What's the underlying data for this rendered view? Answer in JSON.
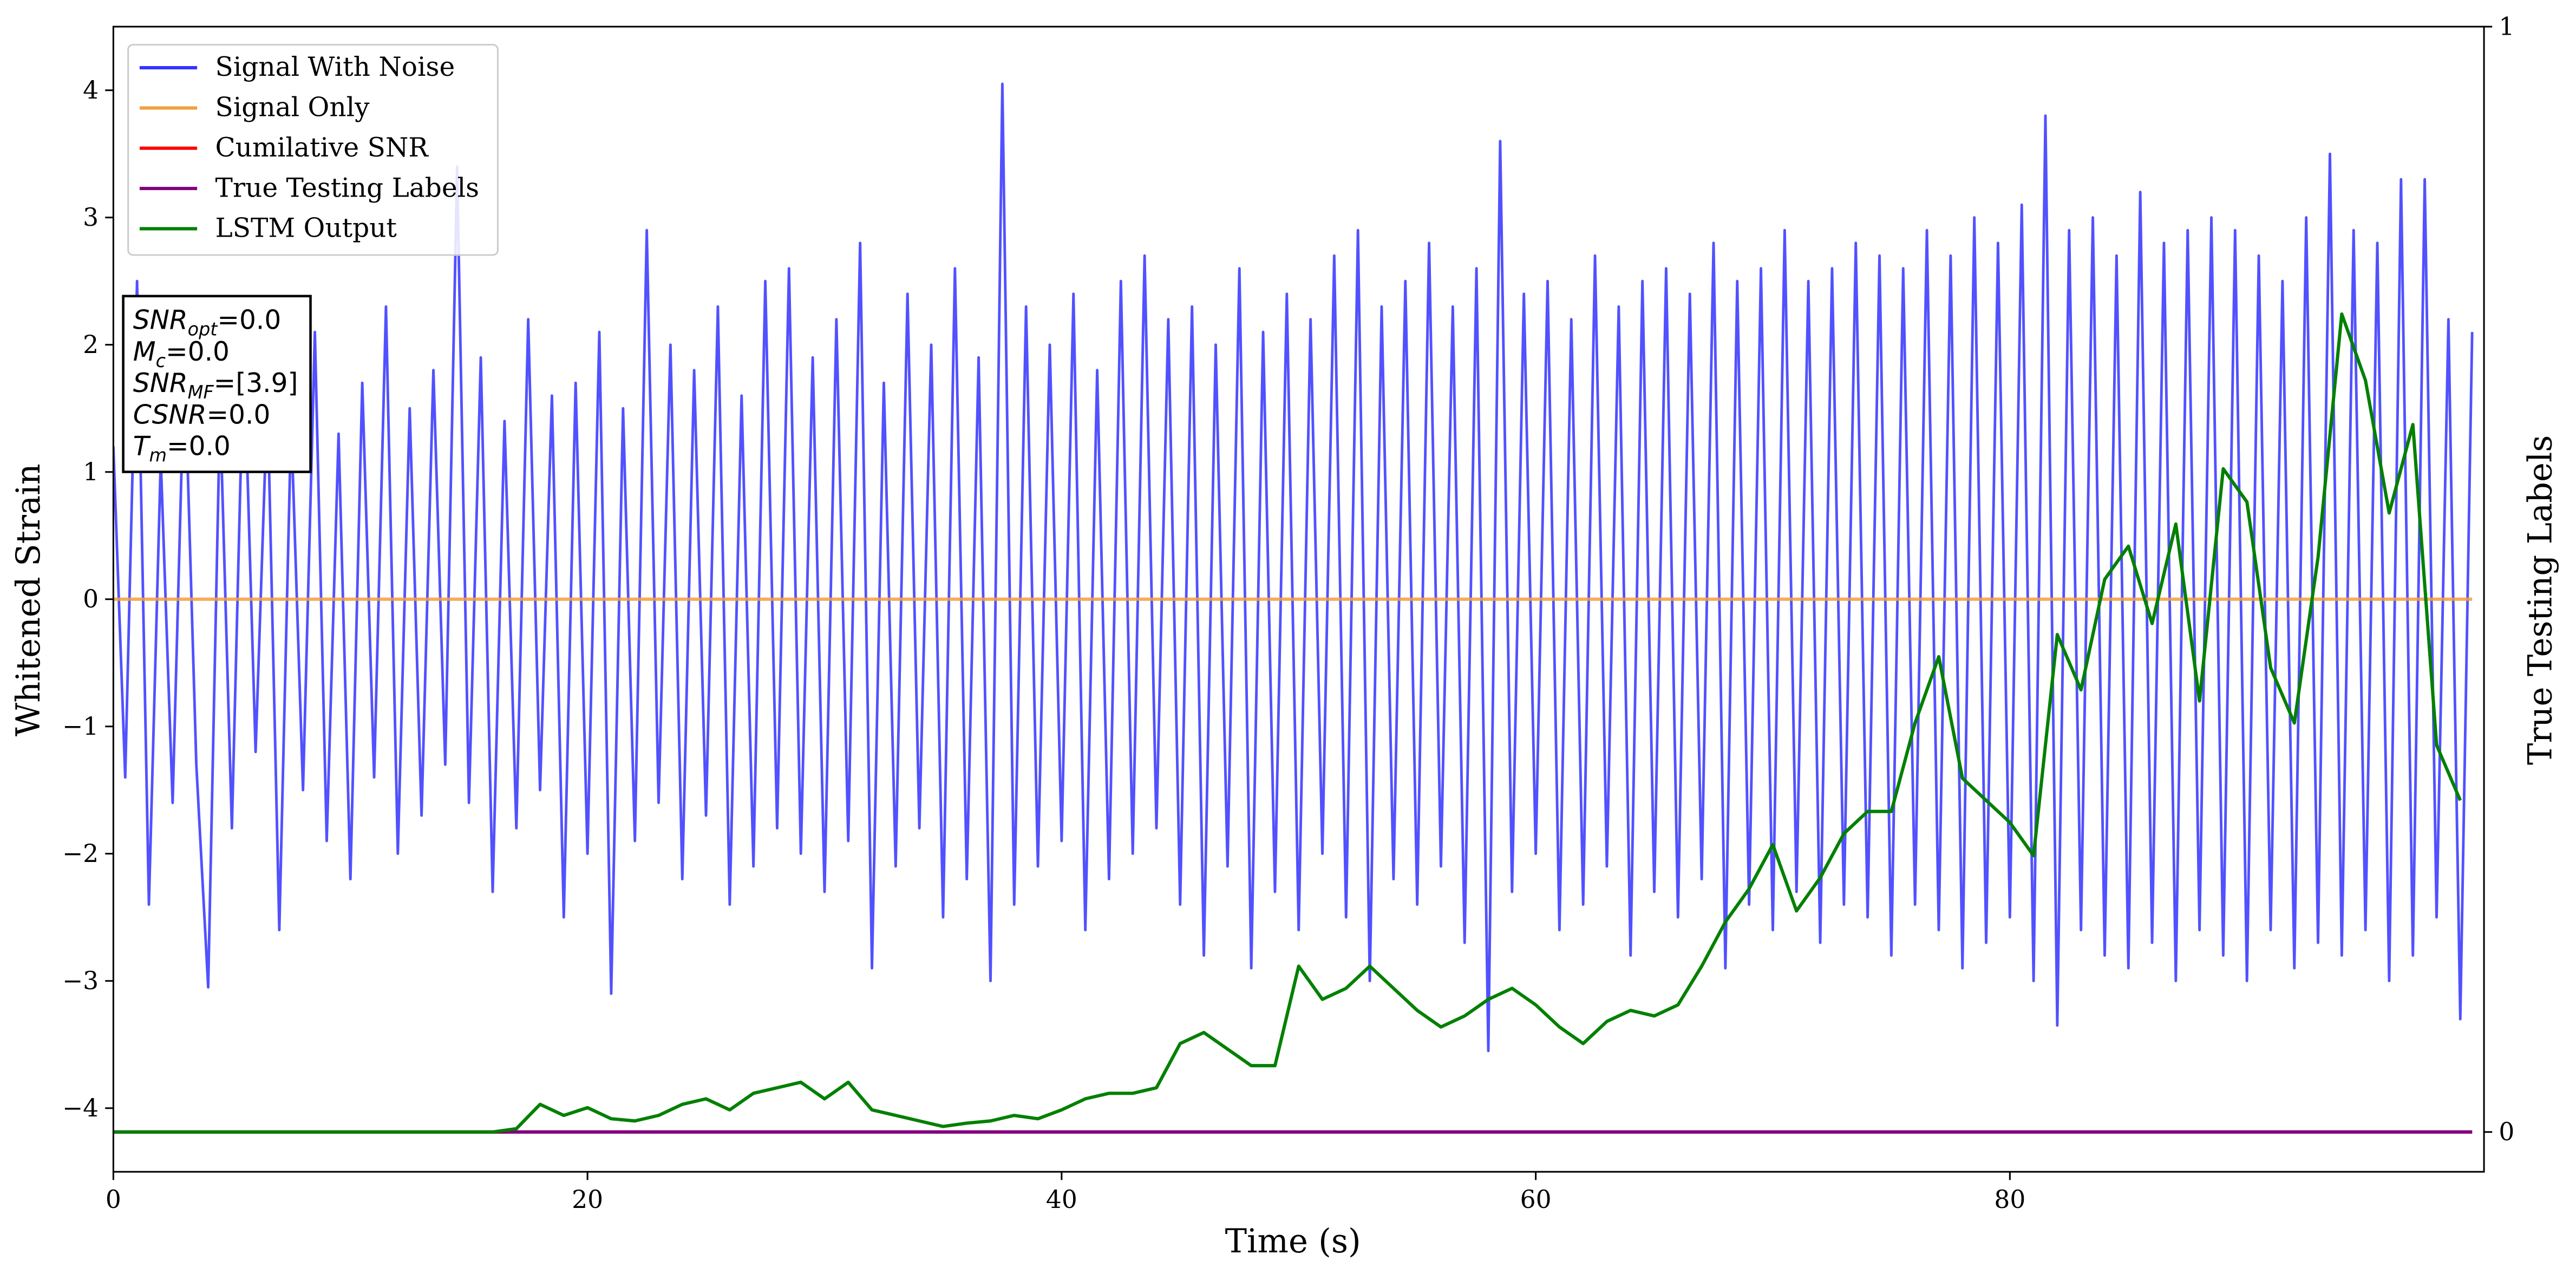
{
  "chart_data": {
    "type": "line",
    "xlabel": "Time (s)",
    "ylabel": "Whitened Strain",
    "y2label": "True Testing Labels",
    "xlim": [
      0,
      100
    ],
    "ylim": [
      -4.5,
      4.5
    ],
    "y2lim": [
      -0.036,
      1
    ],
    "xticks": [
      0,
      20,
      40,
      60,
      80
    ],
    "yticks": [
      {
        "value": -4,
        "label": "−4"
      },
      {
        "value": -3,
        "label": "−3"
      },
      {
        "value": -2,
        "label": "−2"
      },
      {
        "value": -1,
        "label": "−1"
      },
      0,
      1,
      2,
      3,
      4
    ],
    "y2ticks": [
      0,
      1
    ],
    "legend": "upper left",
    "annotation": [
      {
        "base": "SNR",
        "sub": "opt",
        "rest": "=0.0"
      },
      {
        "base": "M",
        "sub": "c",
        "rest": "=0.0"
      },
      {
        "base": "SNR",
        "sub": "MF",
        "rest": "=[3.9]"
      },
      {
        "base": "CSNR",
        "rest": "=0.0"
      },
      {
        "base": "T",
        "sub": "m",
        "rest": "=0.0"
      }
    ],
    "series": [
      {
        "name": "Signal With Noise",
        "color": "#3333ff",
        "x": [
          0,
          0.5,
          1,
          1.5,
          2,
          2.5,
          3,
          3.5,
          4,
          4.5,
          5,
          5.5,
          6,
          6.5,
          7,
          7.5,
          8,
          8.5,
          9,
          9.5,
          10,
          10.5,
          11,
          11.5,
          12,
          12.5,
          13,
          13.5,
          14,
          14.5,
          15,
          15.5,
          16,
          16.5,
          17,
          17.5,
          18,
          18.5,
          19,
          19.5,
          20,
          20.5,
          21,
          21.5,
          22,
          22.5,
          23,
          23.5,
          24,
          24.5,
          25,
          25.5,
          26,
          26.5,
          27,
          27.5,
          28,
          28.5,
          29,
          29.5,
          30,
          30.5,
          31,
          31.5,
          32,
          32.5,
          33,
          33.5,
          34,
          34.5,
          35,
          35.5,
          36,
          36.5,
          37,
          37.5,
          38,
          38.5,
          39,
          39.5,
          40,
          40.5,
          41,
          41.5,
          42,
          42.5,
          43,
          43.5,
          44,
          44.5,
          45,
          45.5,
          46,
          46.5,
          47,
          47.5,
          48,
          48.5,
          49,
          49.5,
          50,
          50.5,
          51,
          51.5,
          52,
          52.5,
          53,
          53.5,
          54,
          54.5,
          55,
          55.5,
          56,
          56.5,
          57,
          57.5,
          58,
          58.5,
          59,
          59.5,
          60,
          60.5,
          61,
          61.5,
          62,
          62.5,
          63,
          63.5,
          64,
          64.5,
          65,
          65.5,
          66,
          66.5,
          67,
          67.5,
          68,
          68.5,
          69,
          69.5,
          70,
          70.5,
          71,
          71.5,
          72,
          72.5,
          73,
          73.5,
          74,
          74.5,
          75,
          75.5,
          76,
          76.5,
          77,
          77.5,
          78,
          78.5,
          79,
          79.5,
          80,
          80.5,
          81,
          81.5,
          82,
          82.5,
          83,
          83.5,
          84,
          84.5,
          85,
          85.5,
          86,
          86.5,
          87,
          87.5,
          88,
          88.5,
          89,
          89.5,
          90,
          90.5,
          91,
          91.5,
          92,
          92.5,
          93,
          93.5,
          94,
          94.5,
          95,
          95.5,
          96,
          96.5,
          97,
          97.5,
          98,
          98.5,
          99,
          99.5
        ],
        "values": [
          1.2,
          -1.4,
          2.5,
          -2.4,
          1.1,
          -1.6,
          1.9,
          -1.3,
          -3.05,
          1.5,
          -1.8,
          2.0,
          -1.2,
          1.6,
          -2.6,
          1.4,
          -1.5,
          2.1,
          -1.9,
          1.3,
          -2.2,
          1.7,
          -1.4,
          2.3,
          -2.0,
          1.5,
          -1.7,
          1.8,
          -1.3,
          3.4,
          -1.6,
          1.9,
          -2.3,
          1.4,
          -1.8,
          2.2,
          -1.5,
          1.6,
          -2.5,
          1.7,
          -2.0,
          2.1,
          -3.1,
          1.5,
          -1.9,
          2.9,
          -1.6,
          2.0,
          -2.2,
          1.8,
          -1.7,
          2.3,
          -2.4,
          1.6,
          -2.1,
          2.5,
          -1.8,
          2.6,
          -2.0,
          1.9,
          -2.3,
          2.2,
          -1.9,
          2.8,
          -2.9,
          1.7,
          -2.1,
          2.4,
          -1.8,
          2.0,
          -2.5,
          2.6,
          -2.2,
          1.9,
          -3.0,
          4.05,
          -2.4,
          2.3,
          -2.1,
          2.0,
          -1.9,
          2.4,
          -2.6,
          1.8,
          -2.2,
          2.5,
          -2.0,
          2.7,
          -1.8,
          2.2,
          -2.4,
          2.3,
          -2.8,
          2.0,
          -2.1,
          2.6,
          -2.9,
          2.1,
          -2.3,
          2.4,
          -2.6,
          2.2,
          -2.0,
          2.7,
          -2.5,
          2.9,
          -3.0,
          2.3,
          -2.2,
          2.5,
          -2.4,
          2.8,
          -2.1,
          2.3,
          -2.7,
          2.6,
          -3.55,
          3.6,
          -2.3,
          2.4,
          -2.0,
          2.5,
          -2.6,
          2.2,
          -2.4,
          2.7,
          -2.1,
          2.3,
          -2.8,
          2.5,
          -2.3,
          2.6,
          -2.5,
          2.4,
          -2.2,
          2.8,
          -2.9,
          2.5,
          -2.4,
          2.6,
          -2.6,
          2.9,
          -2.3,
          2.5,
          -2.7,
          2.6,
          -2.4,
          2.8,
          -2.5,
          2.7,
          -2.8,
          2.6,
          -2.4,
          2.9,
          -2.6,
          2.7,
          -2.9,
          3.0,
          -2.7,
          2.8,
          -2.5,
          3.1,
          -3.0,
          3.8,
          -3.35,
          2.9,
          -2.6,
          3.0,
          -2.8,
          2.7,
          -2.9,
          3.2,
          -2.7,
          2.8,
          -3.0,
          2.9,
          -2.6,
          3.0,
          -2.8,
          2.9,
          -3.0,
          2.7,
          -2.6,
          2.5,
          -2.9,
          3.0,
          -2.7,
          3.5,
          -2.8,
          2.9,
          -2.6,
          2.8,
          -3.0,
          3.3,
          -2.8,
          3.3,
          -2.5,
          2.2,
          -3.3,
          2.1
        ]
      },
      {
        "name": "Signal Only",
        "color": "#f0a040",
        "x": [
          0,
          99.5
        ],
        "values": [
          0,
          0
        ]
      },
      {
        "name": "Cumilative SNR",
        "color": "#ff0000",
        "axis": "y2",
        "x": [
          0,
          99.5
        ],
        "values": [
          0,
          0
        ]
      },
      {
        "name": "True Testing Labels",
        "color": "#800080",
        "axis": "y2",
        "x": [
          0,
          99.5
        ],
        "values": [
          0,
          0
        ]
      },
      {
        "name": "LSTM Output",
        "color": "#008000",
        "axis": "y2",
        "x": [
          0,
          1,
          2,
          3,
          4,
          5,
          6,
          7,
          8,
          9,
          10,
          11,
          12,
          13,
          14,
          15,
          16,
          17,
          18,
          19,
          20,
          21,
          22,
          23,
          24,
          25,
          26,
          27,
          28,
          29,
          30,
          31,
          32,
          33,
          34,
          35,
          36,
          37,
          38,
          39,
          40,
          41,
          42,
          43,
          44,
          45,
          46,
          47,
          48,
          49,
          50,
          51,
          52,
          53,
          54,
          55,
          56,
          57,
          58,
          59,
          60,
          61,
          62,
          63,
          64,
          65,
          66,
          67,
          68,
          69,
          70,
          71,
          72,
          73,
          74,
          75,
          76,
          77,
          78,
          79,
          80,
          81,
          82,
          83,
          84,
          85,
          86,
          87,
          88,
          89,
          90,
          91,
          92,
          93,
          94,
          95,
          96,
          97,
          98,
          99
        ],
        "values": [
          0,
          0,
          0,
          0,
          0,
          0,
          0,
          0,
          0,
          0,
          0,
          0,
          0,
          0,
          0,
          0,
          0,
          0.003,
          0.025,
          0.015,
          0.022,
          0.012,
          0.01,
          0.015,
          0.025,
          0.03,
          0.02,
          0.035,
          0.04,
          0.045,
          0.03,
          0.045,
          0.02,
          0.015,
          0.01,
          0.005,
          0.008,
          0.01,
          0.015,
          0.012,
          0.02,
          0.03,
          0.035,
          0.035,
          0.04,
          0.08,
          0.09,
          0.075,
          0.06,
          0.06,
          0.15,
          0.12,
          0.13,
          0.15,
          0.13,
          0.11,
          0.095,
          0.105,
          0.12,
          0.13,
          0.115,
          0.095,
          0.08,
          0.1,
          0.11,
          0.105,
          0.115,
          0.15,
          0.19,
          0.22,
          0.26,
          0.2,
          0.23,
          0.27,
          0.29,
          0.29,
          0.37,
          0.43,
          0.32,
          0.3,
          0.28,
          0.25,
          0.45,
          0.4,
          0.5,
          0.53,
          0.46,
          0.55,
          0.39,
          0.6,
          0.57,
          0.42,
          0.37,
          0.52,
          0.74,
          0.68,
          0.56,
          0.64,
          0.35,
          0.3
        ]
      }
    ]
  }
}
